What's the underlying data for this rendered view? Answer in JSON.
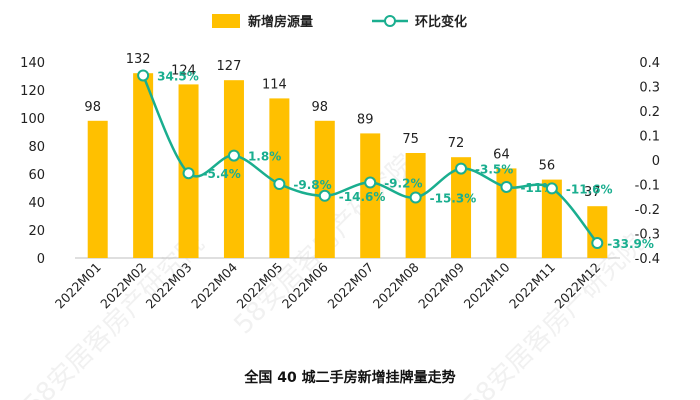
{
  "chart_data": {
    "type": "bar",
    "title": "全国 40 城二手房新增挂牌量走势",
    "categories": [
      "2022M01",
      "2022M02",
      "2022M03",
      "2022M04",
      "2022M05",
      "2022M06",
      "2022M07",
      "2022M08",
      "2022M09",
      "2022M10",
      "2022M11",
      "2022M12"
    ],
    "series": [
      {
        "name": "新增房源量",
        "type": "bar",
        "axis": "left",
        "values": [
          98,
          132,
          124,
          127,
          114,
          98,
          89,
          75,
          72,
          64,
          56,
          37
        ],
        "labels": [
          "98",
          "132",
          "124",
          "127",
          "114",
          "98",
          "89",
          "75",
          "72",
          "64",
          "56",
          "37"
        ]
      },
      {
        "name": "环比变化",
        "type": "line",
        "axis": "right",
        "values": [
          null,
          0.345,
          -0.054,
          0.018,
          -0.098,
          -0.146,
          -0.092,
          -0.153,
          -0.035,
          -0.11,
          -0.116,
          -0.339
        ],
        "labels": [
          "",
          "34.5%",
          "-5.4%",
          "1.8%",
          "-9.8%",
          "-14.6%",
          "-9.2%",
          "-15.3%",
          "-3.5%",
          "-11%",
          "-11.6%",
          "-33.9%"
        ]
      }
    ],
    "y_left": {
      "min": 0,
      "max": 140,
      "ticks": [
        "0",
        "20",
        "40",
        "60",
        "80",
        "100",
        "120",
        "140"
      ]
    },
    "y_right": {
      "min": -0.4,
      "max": 0.4,
      "ticks": [
        "-0.4",
        "-0.3",
        "-0.2",
        "-0.1",
        "0",
        "0.1",
        "0.2",
        "0.3",
        "0.4"
      ]
    },
    "legend_position": "top-center",
    "colors": {
      "bar": "#FFC000",
      "line": "#1AAE8F",
      "marker_fill": "#ffffff"
    },
    "watermark": "58安居客房产研究院"
  }
}
